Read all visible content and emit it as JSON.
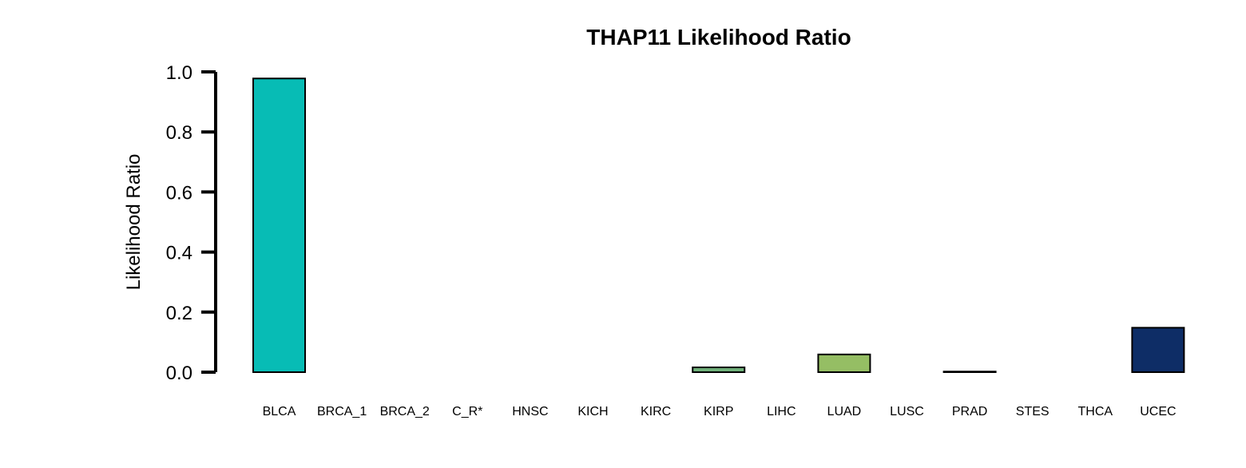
{
  "chart_data": {
    "type": "bar",
    "title": "THAP11 Likelihood Ratio",
    "xlabel": "",
    "ylabel": "Likelihood Ratio",
    "ylim": [
      0,
      1.0
    ],
    "yticks": [
      "0.0",
      "0.2",
      "0.4",
      "0.6",
      "0.8",
      "1.0"
    ],
    "grid": false,
    "categories": [
      "BLCA",
      "BRCA_1",
      "BRCA_2",
      "C_R*",
      "HNSC",
      "KICH",
      "KIRC",
      "KIRP",
      "LIHC",
      "LUAD",
      "LUSC",
      "PRAD",
      "STES",
      "THCA",
      "UCEC"
    ],
    "values": [
      0.978,
      0.0,
      0.0,
      0.0,
      0.0,
      0.0,
      0.0,
      0.016,
      0.0,
      0.059,
      0.0,
      0.002,
      0.0,
      0.0,
      0.148
    ],
    "colors": [
      "#07BCB5",
      "#07BCB5",
      "#07BCB5",
      "#07BCB5",
      "#07BCB5",
      "#07BCB5",
      "#07BCB5",
      "#6FB07A",
      "#07BCB5",
      "#95BE64",
      "#07BCB5",
      "#07BCB5",
      "#07BCB5",
      "#07BCB5",
      "#0E2D66"
    ]
  }
}
